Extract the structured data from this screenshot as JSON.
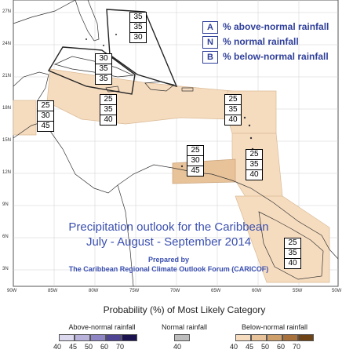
{
  "map": {
    "title_line1": "Precipitation outlook for the Caribbean",
    "title_line2": "July - August - September 2014",
    "prepared_line1": "Prepared by",
    "prepared_line2": "The Caribbean Regional Climate Outlook Forum (CARICOF)",
    "colors": {
      "region_light": "#f6dcbf",
      "region_medium": "#e8c39a",
      "outline": "#222222"
    }
  },
  "key": [
    {
      "letter": "A",
      "text": "% above-normal rainfall"
    },
    {
      "letter": "N",
      "text": "% normal rainfall"
    },
    {
      "letter": "B",
      "text": "% below-normal rainfall"
    }
  ],
  "lat_labels": [
    "27N",
    "24N",
    "21N",
    "18N",
    "15N",
    "12N",
    "9N",
    "6N",
    "3N"
  ],
  "lon_labels": [
    "90W",
    "85W",
    "80W",
    "75W",
    "70W",
    "65W",
    "60W",
    "55W",
    "50W"
  ],
  "prob_boxes": [
    {
      "name": "prob-box-bahamas-east",
      "a": "35",
      "n": "35",
      "b": "30"
    },
    {
      "name": "prob-box-cuba",
      "a": "30",
      "n": "35",
      "b": "35"
    },
    {
      "name": "prob-box-belize",
      "a": "25",
      "n": "30",
      "b": "45"
    },
    {
      "name": "prob-box-hispaniola",
      "a": "25",
      "n": "35",
      "b": "40"
    },
    {
      "name": "prob-box-leeward",
      "a": "25",
      "n": "35",
      "b": "40"
    },
    {
      "name": "prob-box-abc-islands",
      "a": "25",
      "n": "30",
      "b": "45"
    },
    {
      "name": "prob-box-windward",
      "a": "25",
      "n": "35",
      "b": "40"
    },
    {
      "name": "prob-box-guianas",
      "a": "25",
      "n": "35",
      "b": "40"
    }
  ],
  "legend": {
    "heading": "Probability (%) of Most Likely Category",
    "above": {
      "label": "Above-normal rainfall",
      "ticks": [
        "40",
        "45",
        "50",
        "60",
        "70"
      ],
      "colors": [
        "#dcd9ee",
        "#b9b3dc",
        "#8e86c4",
        "#4f4394",
        "#1b1250"
      ]
    },
    "normal": {
      "label": "Normal rainfall",
      "ticks": [
        "40"
      ],
      "colors": [
        "#bdbdbd"
      ]
    },
    "below": {
      "label": "Below-normal rainfall",
      "ticks": [
        "40",
        "45",
        "50",
        "60",
        "70"
      ],
      "colors": [
        "#f6dcbf",
        "#e8c39a",
        "#cf9f6a",
        "#a8713b",
        "#6e4315"
      ]
    }
  }
}
